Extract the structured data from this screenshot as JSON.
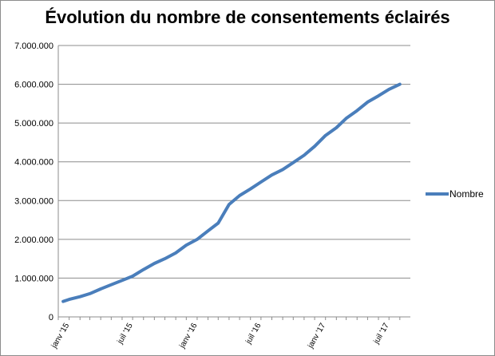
{
  "chart_data": {
    "type": "line",
    "title": "Évolution du nombre de consentements éclairés",
    "xlabel": "",
    "ylabel": "",
    "ylim": [
      0,
      7000000
    ],
    "ytick_labels": [
      "0",
      "1.000.000",
      "2.000.000",
      "3.000.000",
      "4.000.000",
      "5.000.000",
      "6.000.000",
      "7.000.000"
    ],
    "x_dates": [
      "2014-12-15",
      "2015-01-01",
      "2015-02-01",
      "2015-03-01",
      "2015-04-01",
      "2015-05-01",
      "2015-06-01",
      "2015-07-01",
      "2015-08-01",
      "2015-09-01",
      "2015-10-01",
      "2015-11-01",
      "2015-12-01",
      "2016-01-01",
      "2016-02-01",
      "2016-03-01",
      "2016-04-01",
      "2016-05-01",
      "2016-06-01",
      "2016-07-01",
      "2016-08-01",
      "2016-09-01",
      "2016-10-01",
      "2016-11-01",
      "2016-12-01",
      "2017-01-01",
      "2017-02-01",
      "2017-03-01",
      "2017-04-01",
      "2017-05-01",
      "2017-06-01",
      "2017-07-01",
      "2017-08-01"
    ],
    "x_tick_dates": [
      "2015-01-01",
      "2015-07-01",
      "2016-01-01",
      "2016-07-01",
      "2017-01-01",
      "2017-07-01"
    ],
    "x_tick_labels": [
      "janv '15",
      "juil '15",
      "janv '16",
      "juil '16",
      "janv '17",
      "juil '17"
    ],
    "series": [
      {
        "name": "Nombre",
        "values": [
          400000,
          450000,
          520000,
          600000,
          720000,
          830000,
          940000,
          1050000,
          1220000,
          1380000,
          1500000,
          1650000,
          1850000,
          2000000,
          2220000,
          2420000,
          2900000,
          3130000,
          3300000,
          3480000,
          3660000,
          3800000,
          3980000,
          4170000,
          4400000,
          4680000,
          4880000,
          5120000,
          5320000,
          5540000,
          5700000,
          5870000,
          6000000
        ],
        "color": "#4A7EBB"
      }
    ],
    "legend_position": "right",
    "grid": true
  }
}
